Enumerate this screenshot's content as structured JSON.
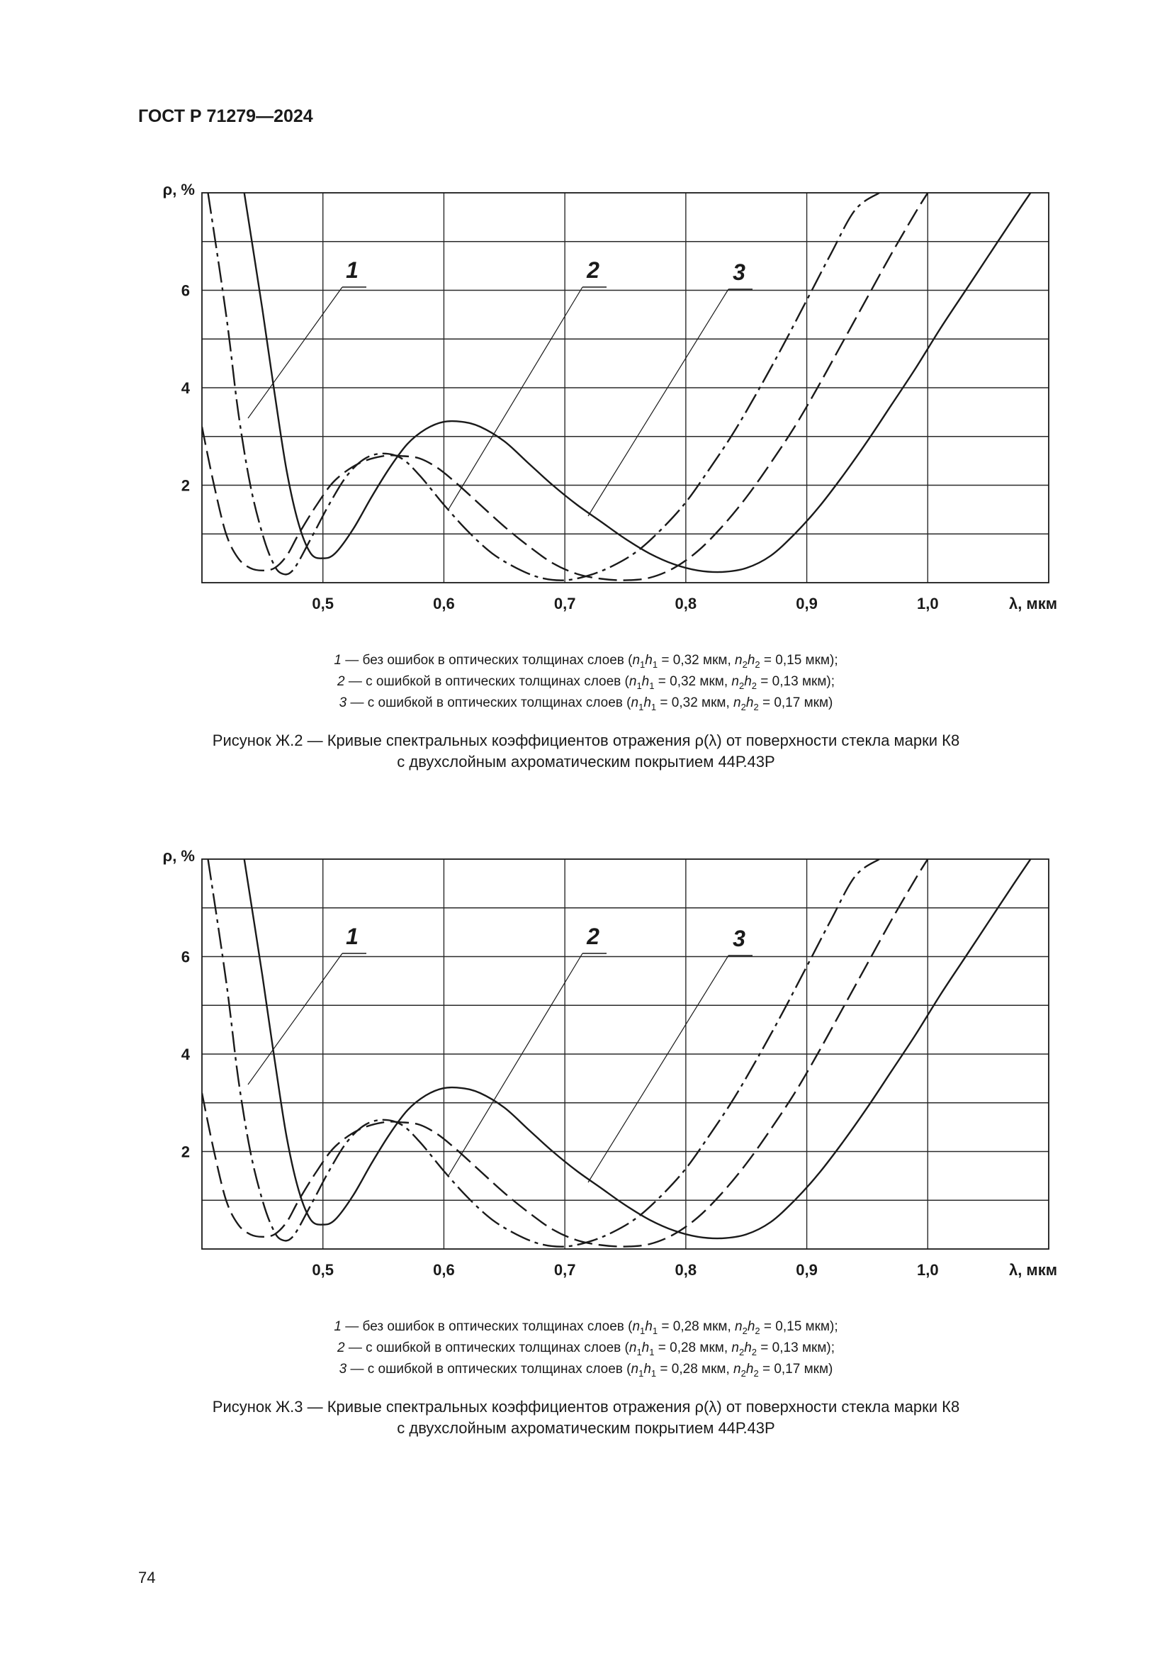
{
  "header": {
    "doc_id": "ГОСТ Р 71279—2024"
  },
  "page_number": "74",
  "figures": [
    {
      "id": "fig1",
      "legend": [
        {
          "num": "1",
          "text": " — без ошибок в оптических толщинах слоев (",
          "v1": "0,32 мкм",
          "v2": "0,15 мкм",
          "end": ");"
        },
        {
          "num": "2",
          "text": " — с ошибкой в оптических толщинах слоев (",
          "v1": "0,32 мкм",
          "v2": "0,13 мкм",
          "end": ");"
        },
        {
          "num": "3",
          "text": " — с ошибкой в оптических толщинах слоев (",
          "v1": "0,32 мкм",
          "v2": "0,17 мкм",
          "end": ")"
        }
      ],
      "caption_line1": "Рисунок Ж.2 — Кривые спектральных коэффициентов отражения ρ(λ) от поверхности стекла марки К8",
      "caption_line2": "с двухслойным ахроматическим покрытием 44Р.43Р"
    },
    {
      "id": "fig2",
      "legend": [
        {
          "num": "1",
          "text": " — без ошибок в оптических толщинах слоев (",
          "v1": "0,28 мкм",
          "v2": "0,15 мкм",
          "end": ");"
        },
        {
          "num": "2",
          "text": " — с ошибкой в оптических толщинах слоев (",
          "v1": "0,28 мкм",
          "v2": "0,13 мкм",
          "end": ");"
        },
        {
          "num": "3",
          "text": " — с ошибкой в оптических толщинах слоев (",
          "v1": "0,28 мкм",
          "v2": "0,17 мкм",
          "end": ")"
        }
      ],
      "caption_line1": "Рисунок Ж.3 — Кривые спектральных коэффициентов отражения ρ(λ) от поверхности стекла марки К8",
      "caption_line2": "с двухслойным ахроматическим покрытием 44Р.43Р"
    }
  ],
  "chart_data": [
    {
      "type": "line",
      "ylabel": "ρ, %",
      "xlabel": "λ, мкм",
      "xlim": [
        0.4,
        1.1
      ],
      "ylim": [
        0,
        8
      ],
      "x_ticks": [
        0.5,
        0.6,
        0.7,
        0.8,
        0.9,
        1.0
      ],
      "x_tick_labels": [
        "0,5",
        "0,6",
        "0,7",
        "0,8",
        "0,9",
        "1,0"
      ],
      "y_ticks": [
        2,
        4,
        6
      ],
      "y_tick_labels": [
        "2",
        "4",
        "6"
      ],
      "grid": true,
      "curve_labels": [
        "1",
        "2",
        "3"
      ],
      "series": [
        {
          "label": "1",
          "style": "dash-dot",
          "points": [
            [
              0.405,
              8.0
            ],
            [
              0.42,
              5.5
            ],
            [
              0.43,
              3.5
            ],
            [
              0.44,
              2.0
            ],
            [
              0.45,
              1.0
            ],
            [
              0.458,
              0.45
            ],
            [
              0.465,
              0.2
            ],
            [
              0.475,
              0.25
            ],
            [
              0.49,
              0.9
            ],
            [
              0.505,
              1.6
            ],
            [
              0.52,
              2.2
            ],
            [
              0.535,
              2.55
            ],
            [
              0.55,
              2.65
            ],
            [
              0.565,
              2.55
            ],
            [
              0.58,
              2.2
            ],
            [
              0.6,
              1.6
            ],
            [
              0.62,
              1.05
            ],
            [
              0.64,
              0.6
            ],
            [
              0.66,
              0.3
            ],
            [
              0.68,
              0.1
            ],
            [
              0.7,
              0.05
            ],
            [
              0.72,
              0.15
            ],
            [
              0.74,
              0.35
            ],
            [
              0.76,
              0.65
            ],
            [
              0.78,
              1.1
            ],
            [
              0.8,
              1.65
            ],
            [
              0.82,
              2.35
            ],
            [
              0.84,
              3.1
            ],
            [
              0.86,
              3.95
            ],
            [
              0.88,
              4.85
            ],
            [
              0.9,
              5.8
            ],
            [
              0.92,
              6.75
            ],
            [
              0.94,
              7.65
            ],
            [
              0.96,
              8.0
            ]
          ]
        },
        {
          "label": "2",
          "style": "dashed",
          "points": [
            [
              0.4,
              3.2
            ],
            [
              0.41,
              2.0
            ],
            [
              0.42,
              1.0
            ],
            [
              0.43,
              0.5
            ],
            [
              0.44,
              0.3
            ],
            [
              0.45,
              0.25
            ],
            [
              0.46,
              0.3
            ],
            [
              0.47,
              0.55
            ],
            [
              0.48,
              1.0
            ],
            [
              0.495,
              1.6
            ],
            [
              0.51,
              2.1
            ],
            [
              0.53,
              2.45
            ],
            [
              0.55,
              2.6
            ],
            [
              0.565,
              2.6
            ],
            [
              0.58,
              2.55
            ],
            [
              0.595,
              2.35
            ],
            [
              0.61,
              2.05
            ],
            [
              0.63,
              1.6
            ],
            [
              0.65,
              1.15
            ],
            [
              0.67,
              0.75
            ],
            [
              0.69,
              0.4
            ],
            [
              0.71,
              0.18
            ],
            [
              0.73,
              0.08
            ],
            [
              0.75,
              0.05
            ],
            [
              0.77,
              0.1
            ],
            [
              0.79,
              0.3
            ],
            [
              0.81,
              0.65
            ],
            [
              0.83,
              1.15
            ],
            [
              0.85,
              1.75
            ],
            [
              0.87,
              2.45
            ],
            [
              0.89,
              3.2
            ],
            [
              0.91,
              4.05
            ],
            [
              0.93,
              4.95
            ],
            [
              0.95,
              5.85
            ],
            [
              0.97,
              6.75
            ],
            [
              0.99,
              7.6
            ],
            [
              1.0,
              8.0
            ]
          ]
        },
        {
          "label": "3",
          "style": "solid",
          "points": [
            [
              0.435,
              8.0
            ],
            [
              0.45,
              5.6
            ],
            [
              0.46,
              3.9
            ],
            [
              0.47,
              2.3
            ],
            [
              0.48,
              1.2
            ],
            [
              0.49,
              0.6
            ],
            [
              0.5,
              0.5
            ],
            [
              0.51,
              0.6
            ],
            [
              0.525,
              1.1
            ],
            [
              0.54,
              1.75
            ],
            [
              0.555,
              2.35
            ],
            [
              0.57,
              2.85
            ],
            [
              0.585,
              3.15
            ],
            [
              0.6,
              3.3
            ],
            [
              0.615,
              3.3
            ],
            [
              0.63,
              3.2
            ],
            [
              0.65,
              2.9
            ],
            [
              0.67,
              2.45
            ],
            [
              0.69,
              2.0
            ],
            [
              0.71,
              1.6
            ],
            [
              0.73,
              1.25
            ],
            [
              0.75,
              0.9
            ],
            [
              0.77,
              0.6
            ],
            [
              0.79,
              0.38
            ],
            [
              0.81,
              0.25
            ],
            [
              0.83,
              0.22
            ],
            [
              0.85,
              0.3
            ],
            [
              0.87,
              0.55
            ],
            [
              0.89,
              1.0
            ],
            [
              0.91,
              1.55
            ],
            [
              0.93,
              2.2
            ],
            [
              0.95,
              2.9
            ],
            [
              0.97,
              3.65
            ],
            [
              0.99,
              4.4
            ],
            [
              1.01,
              5.2
            ],
            [
              1.03,
              5.95
            ],
            [
              1.05,
              6.7
            ],
            [
              1.07,
              7.45
            ],
            [
              1.085,
              8.0
            ]
          ]
        }
      ]
    },
    {
      "type": "line",
      "ylabel": "ρ, %",
      "xlabel": "λ, мкм",
      "xlim": [
        0.4,
        1.1
      ],
      "ylim": [
        0,
        8
      ],
      "x_ticks": [
        0.5,
        0.6,
        0.7,
        0.8,
        0.9,
        1.0
      ],
      "x_tick_labels": [
        "0,5",
        "0,6",
        "0,7",
        "0,8",
        "0,9",
        "1,0"
      ],
      "y_ticks": [
        2,
        4,
        6
      ],
      "y_tick_labels": [
        "2",
        "4",
        "6"
      ],
      "grid": true,
      "curve_labels": [
        "1",
        "2",
        "3"
      ],
      "series": [
        {
          "label": "1",
          "style": "dash-dot",
          "points": [
            [
              0.405,
              8.0
            ],
            [
              0.42,
              5.5
            ],
            [
              0.43,
              3.5
            ],
            [
              0.44,
              2.0
            ],
            [
              0.45,
              1.0
            ],
            [
              0.458,
              0.45
            ],
            [
              0.465,
              0.2
            ],
            [
              0.475,
              0.25
            ],
            [
              0.49,
              0.9
            ],
            [
              0.505,
              1.6
            ],
            [
              0.52,
              2.2
            ],
            [
              0.535,
              2.55
            ],
            [
              0.55,
              2.65
            ],
            [
              0.565,
              2.55
            ],
            [
              0.58,
              2.2
            ],
            [
              0.6,
              1.6
            ],
            [
              0.62,
              1.05
            ],
            [
              0.64,
              0.6
            ],
            [
              0.66,
              0.3
            ],
            [
              0.68,
              0.1
            ],
            [
              0.7,
              0.05
            ],
            [
              0.72,
              0.15
            ],
            [
              0.74,
              0.35
            ],
            [
              0.76,
              0.65
            ],
            [
              0.78,
              1.1
            ],
            [
              0.8,
              1.65
            ],
            [
              0.82,
              2.35
            ],
            [
              0.84,
              3.1
            ],
            [
              0.86,
              3.95
            ],
            [
              0.88,
              4.85
            ],
            [
              0.9,
              5.8
            ],
            [
              0.92,
              6.75
            ],
            [
              0.94,
              7.65
            ],
            [
              0.96,
              8.0
            ]
          ]
        },
        {
          "label": "2",
          "style": "dashed",
          "points": [
            [
              0.4,
              3.2
            ],
            [
              0.41,
              2.0
            ],
            [
              0.42,
              1.0
            ],
            [
              0.43,
              0.5
            ],
            [
              0.44,
              0.3
            ],
            [
              0.45,
              0.25
            ],
            [
              0.46,
              0.3
            ],
            [
              0.47,
              0.55
            ],
            [
              0.48,
              1.0
            ],
            [
              0.495,
              1.6
            ],
            [
              0.51,
              2.1
            ],
            [
              0.53,
              2.45
            ],
            [
              0.55,
              2.6
            ],
            [
              0.565,
              2.6
            ],
            [
              0.58,
              2.55
            ],
            [
              0.595,
              2.35
            ],
            [
              0.61,
              2.05
            ],
            [
              0.63,
              1.6
            ],
            [
              0.65,
              1.15
            ],
            [
              0.67,
              0.75
            ],
            [
              0.69,
              0.4
            ],
            [
              0.71,
              0.18
            ],
            [
              0.73,
              0.08
            ],
            [
              0.75,
              0.05
            ],
            [
              0.77,
              0.1
            ],
            [
              0.79,
              0.3
            ],
            [
              0.81,
              0.65
            ],
            [
              0.83,
              1.15
            ],
            [
              0.85,
              1.75
            ],
            [
              0.87,
              2.45
            ],
            [
              0.89,
              3.2
            ],
            [
              0.91,
              4.05
            ],
            [
              0.93,
              4.95
            ],
            [
              0.95,
              5.85
            ],
            [
              0.97,
              6.75
            ],
            [
              0.99,
              7.6
            ],
            [
              1.0,
              8.0
            ]
          ]
        },
        {
          "label": "3",
          "style": "solid",
          "points": [
            [
              0.435,
              8.0
            ],
            [
              0.45,
              5.6
            ],
            [
              0.46,
              3.9
            ],
            [
              0.47,
              2.3
            ],
            [
              0.48,
              1.2
            ],
            [
              0.49,
              0.6
            ],
            [
              0.5,
              0.5
            ],
            [
              0.51,
              0.6
            ],
            [
              0.525,
              1.1
            ],
            [
              0.54,
              1.75
            ],
            [
              0.555,
              2.35
            ],
            [
              0.57,
              2.85
            ],
            [
              0.585,
              3.15
            ],
            [
              0.6,
              3.3
            ],
            [
              0.615,
              3.3
            ],
            [
              0.63,
              3.2
            ],
            [
              0.65,
              2.9
            ],
            [
              0.67,
              2.45
            ],
            [
              0.69,
              2.0
            ],
            [
              0.71,
              1.6
            ],
            [
              0.73,
              1.25
            ],
            [
              0.75,
              0.9
            ],
            [
              0.77,
              0.6
            ],
            [
              0.79,
              0.38
            ],
            [
              0.81,
              0.25
            ],
            [
              0.83,
              0.22
            ],
            [
              0.85,
              0.3
            ],
            [
              0.87,
              0.55
            ],
            [
              0.89,
              1.0
            ],
            [
              0.91,
              1.55
            ],
            [
              0.93,
              2.2
            ],
            [
              0.95,
              2.9
            ],
            [
              0.97,
              3.65
            ],
            [
              0.99,
              4.4
            ],
            [
              1.01,
              5.2
            ],
            [
              1.03,
              5.95
            ],
            [
              1.05,
              6.7
            ],
            [
              1.07,
              7.45
            ],
            [
              1.085,
              8.0
            ]
          ]
        }
      ]
    }
  ]
}
